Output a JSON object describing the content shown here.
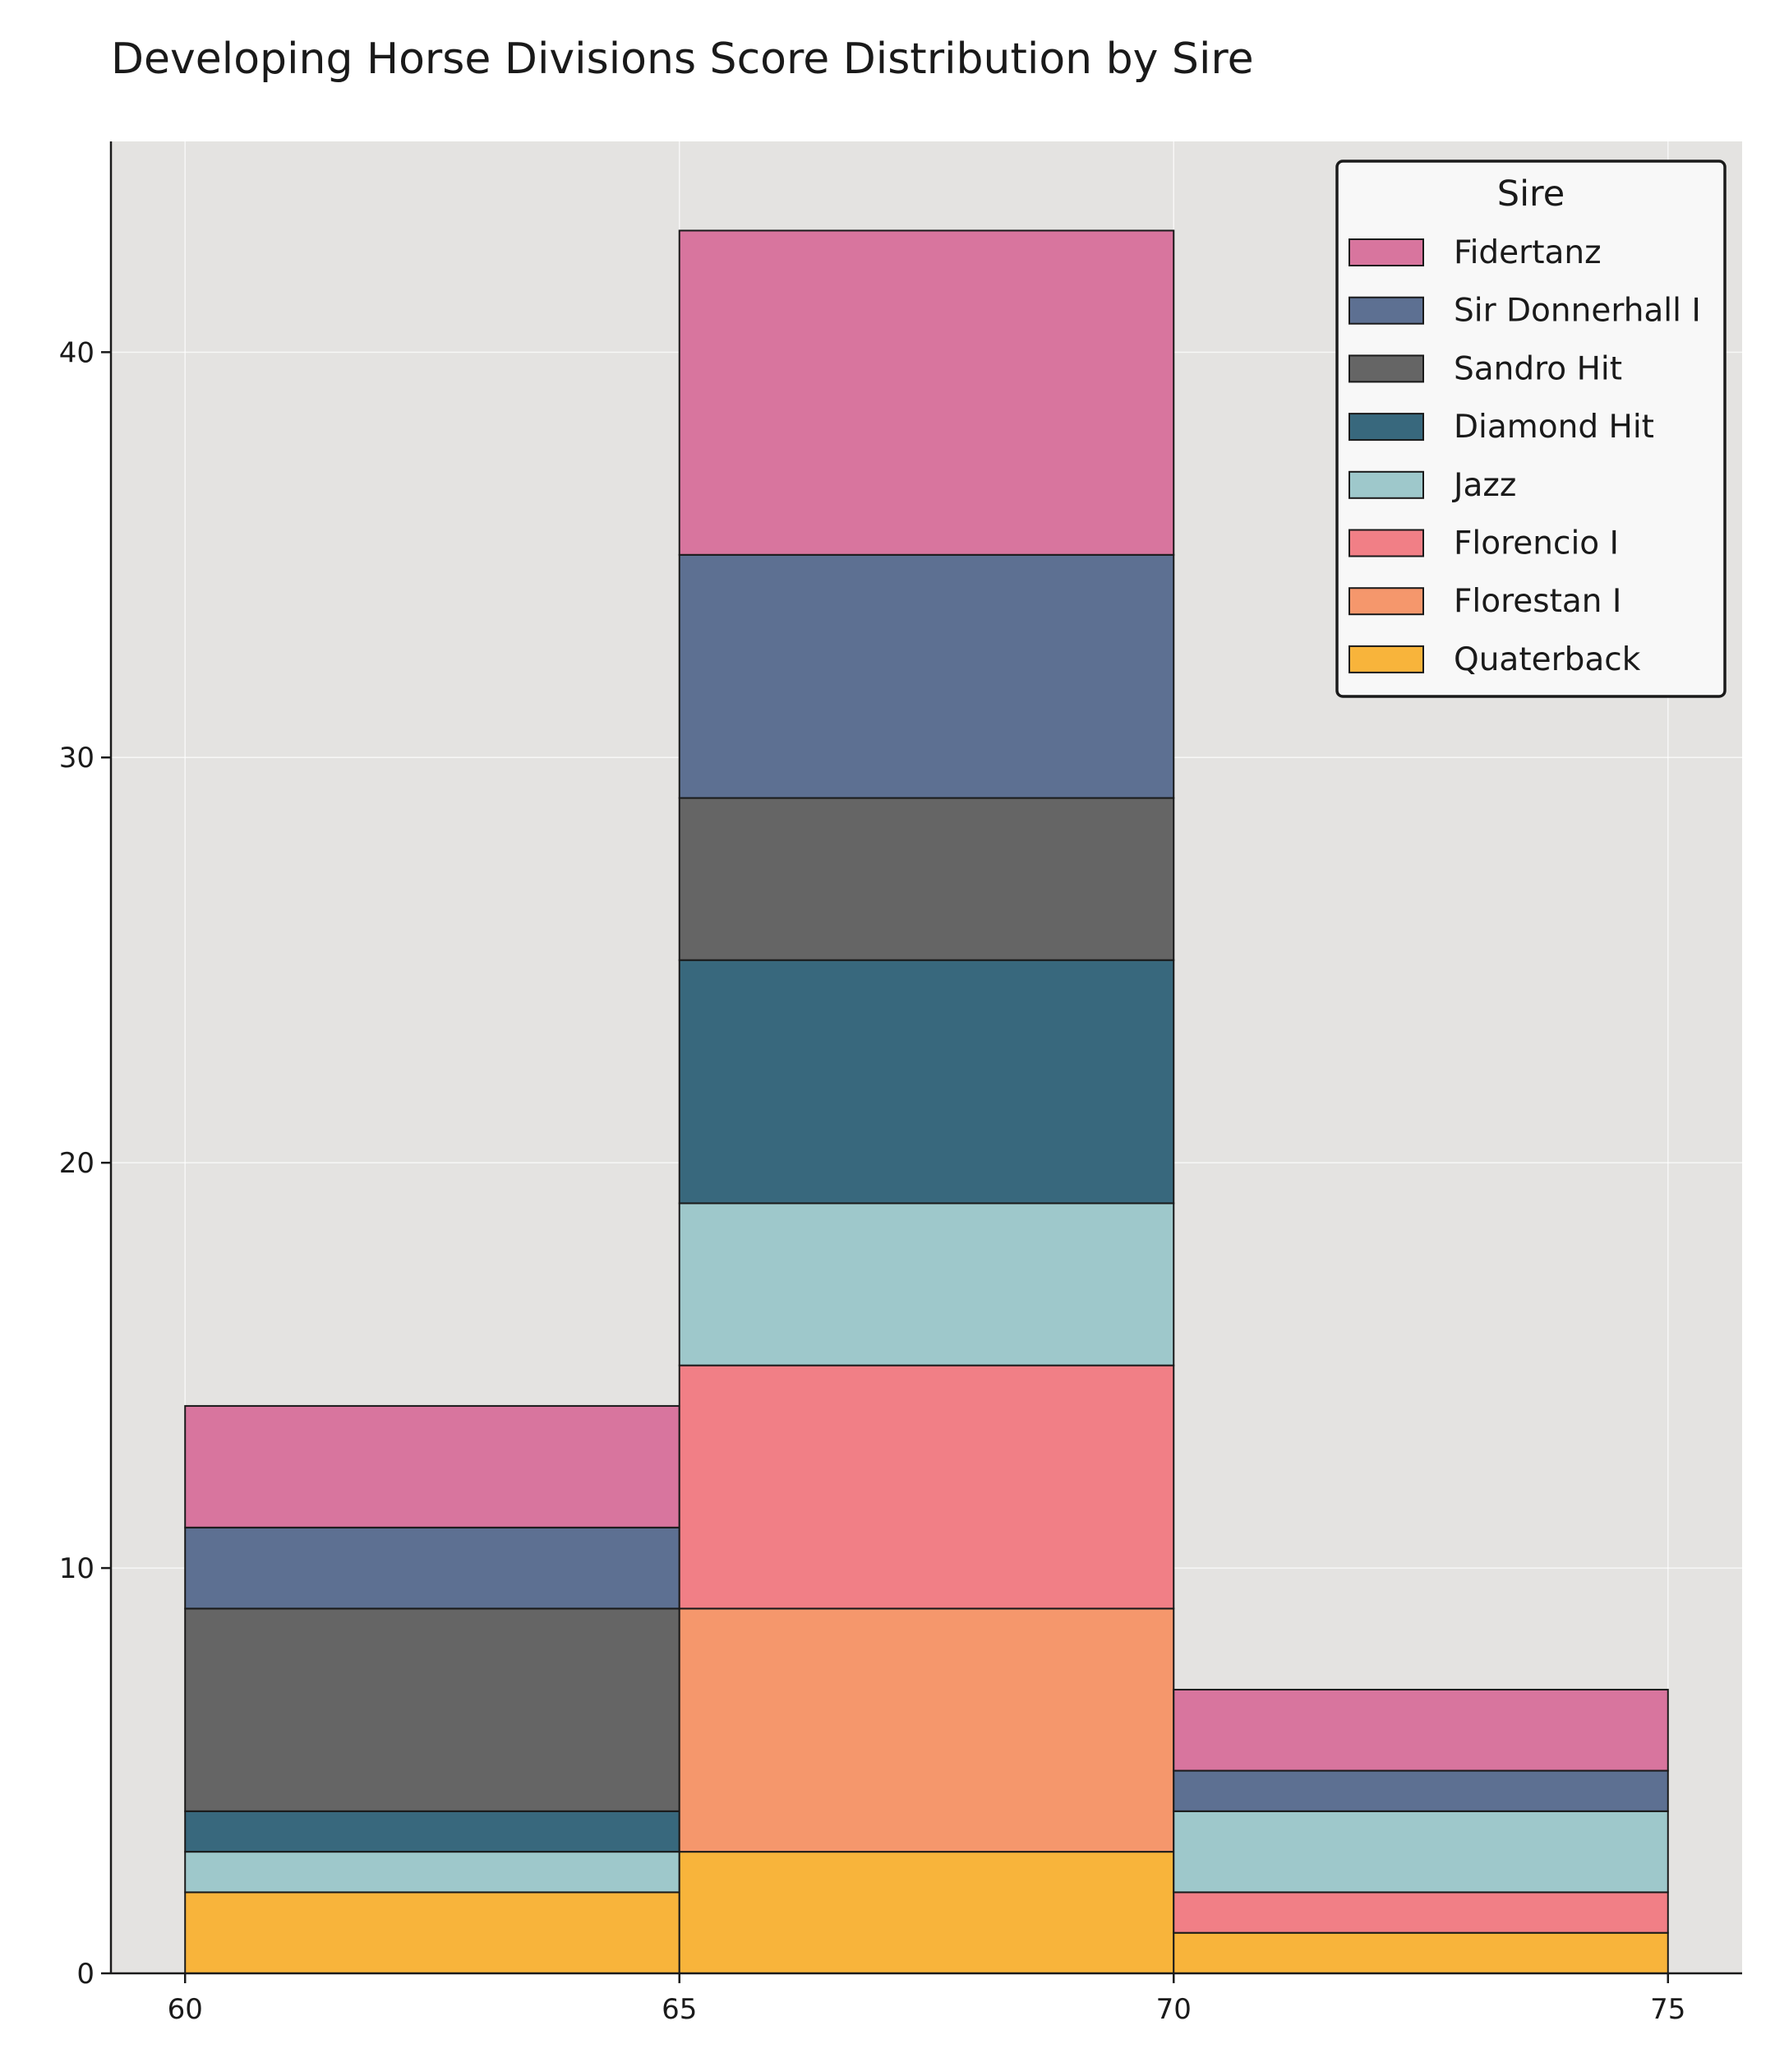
{
  "chart_data": {
    "type": "bar",
    "stacked": true,
    "histogram": true,
    "title": "Developing Horse Divisions Score Distribution by Sire",
    "xlabel": "",
    "ylabel": "",
    "bin_edges": [
      60,
      65,
      70,
      75
    ],
    "xticks": [
      60,
      65,
      70,
      75
    ],
    "yticks": [
      0,
      10,
      20,
      30,
      40
    ],
    "xlim": [
      59.25,
      75.75
    ],
    "ylim": [
      0,
      45.2
    ],
    "grid": true,
    "legend": {
      "title": "Sire",
      "position": "top-right"
    },
    "series": [
      {
        "name": "Quaterback",
        "color": "#f8b43b",
        "values": [
          2,
          3,
          1
        ]
      },
      {
        "name": "Florestan I",
        "color": "#f5976c",
        "values": [
          0,
          6,
          0
        ]
      },
      {
        "name": "Florencio I",
        "color": "#f17f86",
        "values": [
          0,
          6,
          1
        ]
      },
      {
        "name": "Jazz",
        "color": "#9ec8cb",
        "values": [
          1,
          4,
          2
        ]
      },
      {
        "name": "Diamond Hit",
        "color": "#38687d",
        "values": [
          1,
          6,
          0
        ]
      },
      {
        "name": "Sandro Hit",
        "color": "#656565",
        "values": [
          5,
          4,
          0
        ]
      },
      {
        "name": "Sir Donnerhall I",
        "color": "#5d7092",
        "values": [
          2,
          6,
          1
        ]
      },
      {
        "name": "Fidertanz",
        "color": "#d8759e",
        "values": [
          3,
          8,
          2
        ]
      }
    ],
    "legend_order": [
      "Fidertanz",
      "Sir Donnerhall I",
      "Sandro Hit",
      "Diamond Hit",
      "Jazz",
      "Florencio I",
      "Florestan I",
      "Quaterback"
    ]
  }
}
